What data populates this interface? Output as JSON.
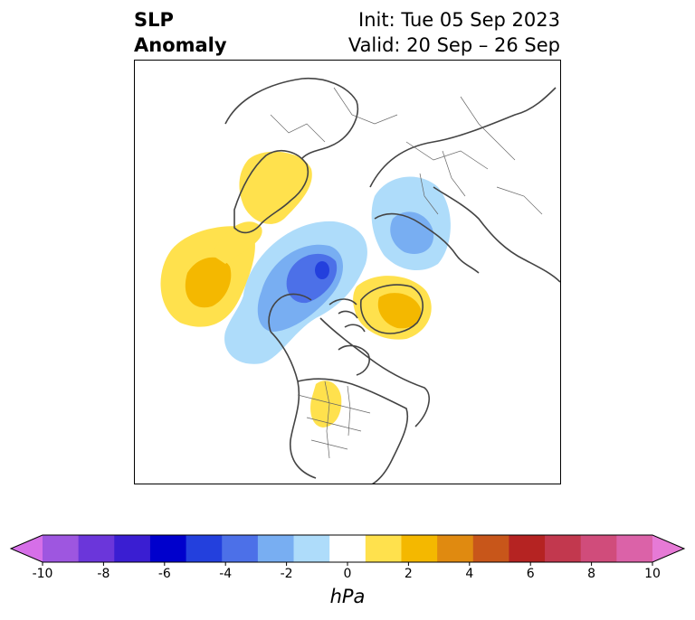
{
  "title": {
    "left_line1": "SLP",
    "left_line2": "Anomaly",
    "init": "Init: Tue 05 Sep 2023",
    "valid": "Valid: 20 Sep – 26 Sep"
  },
  "colorbar": {
    "unit_label": "hPa",
    "tick_labels": [
      "-10",
      "-8",
      "-6",
      "-4",
      "-2",
      "0",
      "2",
      "4",
      "6",
      "8",
      "10"
    ],
    "colors": [
      "#d66fe8",
      "#9e56e0",
      "#6b36da",
      "#3a1ed2",
      "#0000cc",
      "#2340dd",
      "#4c70e8",
      "#78aef2",
      "#aedcfa",
      "#ffffff",
      "#ffe14d",
      "#f4b800",
      "#e08a10",
      "#c8561a",
      "#b52322",
      "#c2384e",
      "#d04c7b",
      "#db62a8",
      "#e67ad6"
    ],
    "extend": "both"
  },
  "map": {
    "region": "North Polar Stereographic",
    "anomaly_color_positive": "#f4b800",
    "anomaly_color_negative": "#4c70e8"
  }
}
